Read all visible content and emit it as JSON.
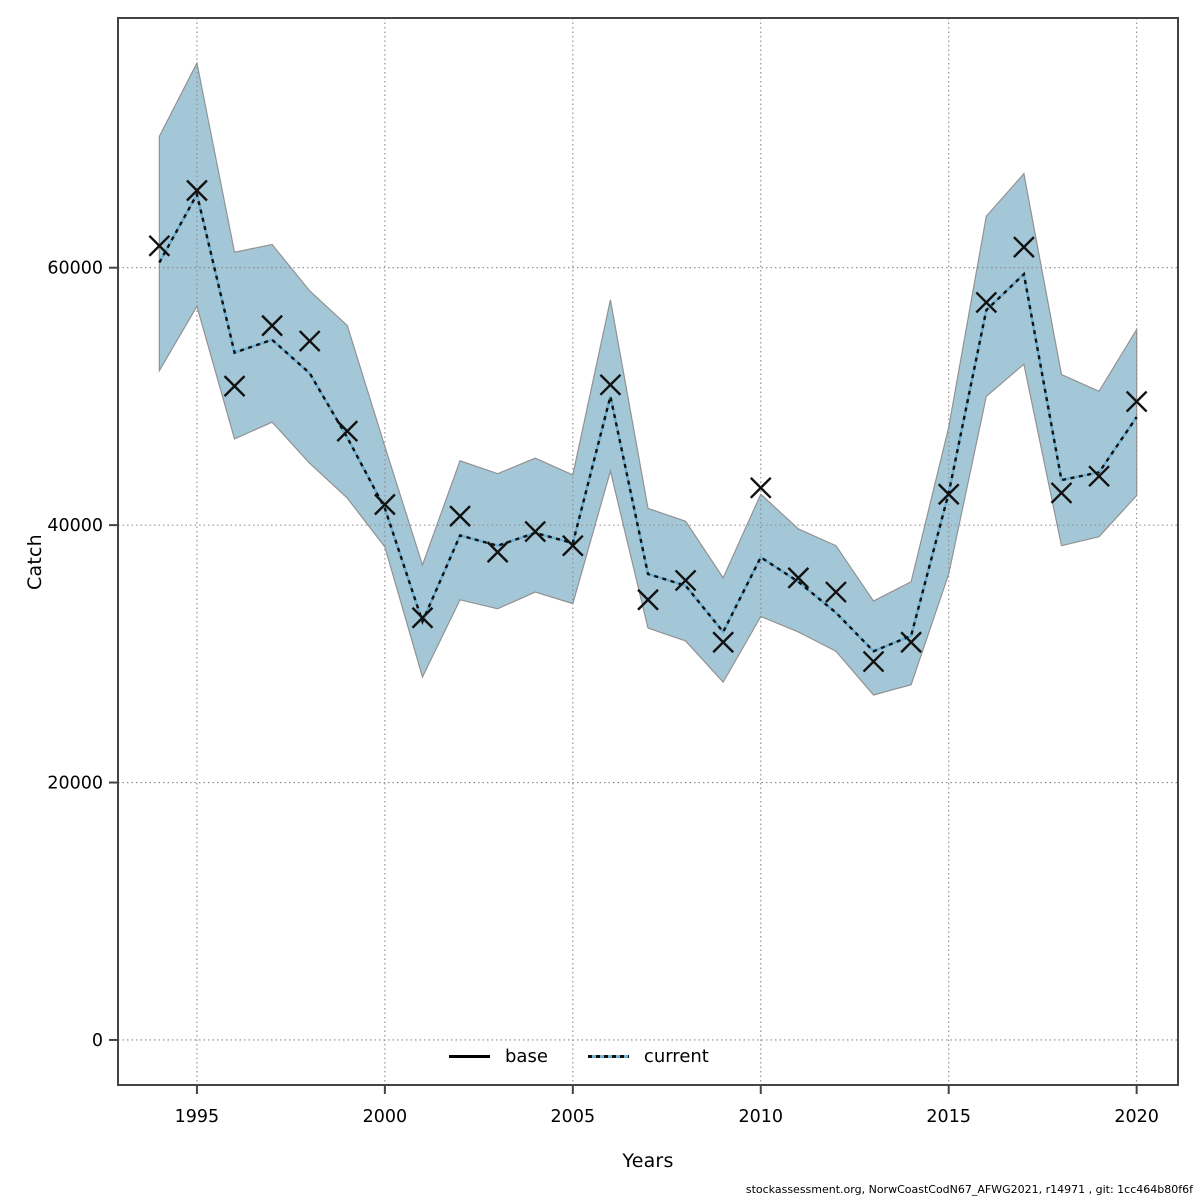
{
  "footer": {
    "text": "stockassessment.org, NorwCoastCodN67_AFWG2021, r14971 , git: 1cc464b80f6f"
  },
  "colors": {
    "background": "#ffffff",
    "band_fill": "#a4c7d7",
    "band_edge": "#929292",
    "current_line_blue": "#70b2d4",
    "current_line_dash": "#111111",
    "marker": "#111111",
    "frame": "#444444",
    "gridline": "#8a8a8a",
    "text": "#000000"
  },
  "legend": {
    "entries": [
      {
        "label": "base",
        "style": "solid",
        "color": "#000000"
      },
      {
        "label": "current",
        "style": "dotted",
        "color": "#70b2d4"
      }
    ],
    "position": "bottom-center-inside"
  },
  "chart_data": {
    "type": "line",
    "title": "",
    "xlabel": "Years",
    "ylabel": "Catch",
    "grid": "dotted",
    "xlim": [
      1992.9,
      2021.1
    ],
    "ylim": [
      -3500,
      79400
    ],
    "x_ticks": [
      {
        "value": 1995,
        "label": "1995"
      },
      {
        "value": 2000,
        "label": "2000"
      },
      {
        "value": 2005,
        "label": "2005"
      },
      {
        "value": 2010,
        "label": "2010"
      },
      {
        "value": 2015,
        "label": "2015"
      },
      {
        "value": 2020,
        "label": "2020"
      }
    ],
    "y_ticks": [
      {
        "value": 0,
        "label": "0"
      },
      {
        "value": 20000,
        "label": "20000"
      },
      {
        "value": 40000,
        "label": "40000"
      },
      {
        "value": 60000,
        "label": "60000"
      }
    ],
    "years": [
      1994,
      1995,
      1996,
      1997,
      1998,
      1999,
      2000,
      2001,
      2002,
      2003,
      2004,
      2005,
      2006,
      2007,
      2008,
      2009,
      2010,
      2011,
      2012,
      2013,
      2014,
      2015,
      2016,
      2017,
      2018,
      2019,
      2020
    ],
    "series": [
      {
        "name": "observed catch (x markers)",
        "marker": "x",
        "values": [
          61700,
          66000,
          50800,
          55500,
          54300,
          47300,
          41600,
          32800,
          40700,
          37900,
          39500,
          38400,
          50900,
          34200,
          35700,
          30900,
          42900,
          35900,
          34800,
          29400,
          30900,
          42400,
          57300,
          61600,
          42500,
          43800,
          49600
        ]
      },
      {
        "name": "current",
        "style": "dotted",
        "values": [
          60400,
          65700,
          53400,
          54400,
          51800,
          46800,
          41300,
          32500,
          39200,
          38400,
          39400,
          38600,
          50000,
          36200,
          35300,
          31700,
          37500,
          35600,
          33200,
          30200,
          31400,
          42500,
          56700,
          59500,
          43500,
          44100,
          48400
        ]
      }
    ],
    "band": {
      "name": "current estimate confidence interval",
      "low": [
        52000,
        57000,
        46700,
        48000,
        44800,
        42100,
        38300,
        28200,
        34200,
        33500,
        34800,
        33900,
        44200,
        32000,
        31000,
        27800,
        32900,
        31700,
        30200,
        26800,
        27600,
        36200,
        50000,
        52500,
        38400,
        39100,
        42300
      ],
      "high": [
        70200,
        75900,
        61200,
        61800,
        58200,
        55500,
        46100,
        36900,
        45000,
        44000,
        45200,
        43900,
        57500,
        41300,
        40300,
        35900,
        42400,
        39700,
        38400,
        34100,
        35600,
        47600,
        64000,
        67300,
        51700,
        50400,
        55200
      ]
    }
  }
}
